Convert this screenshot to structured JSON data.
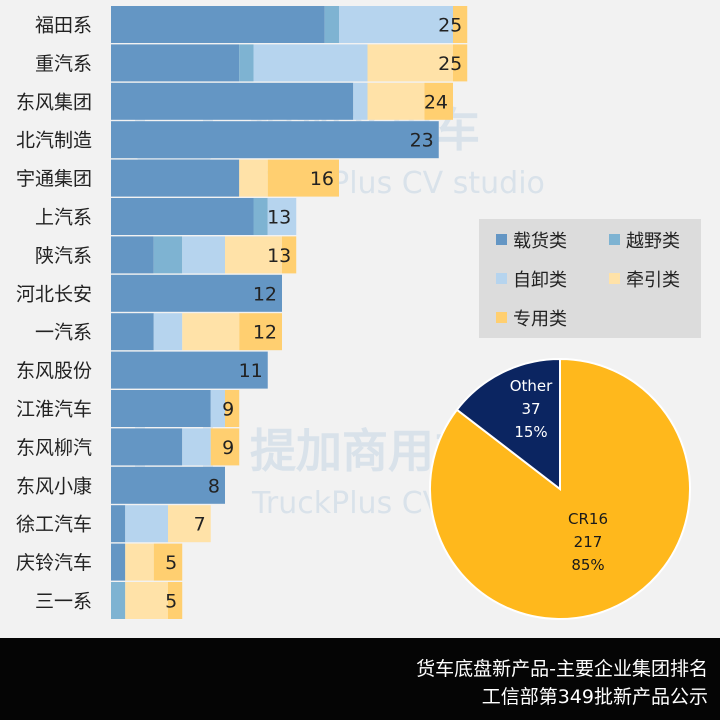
{
  "chart_data": [
    {
      "type": "bar",
      "orientation": "horizontal",
      "stacked": true,
      "categories": [
        "福田系",
        "重汽系",
        "东风集团",
        "北汽制造",
        "宇通集团",
        "上汽系",
        "陕汽系",
        "河北长安",
        "一汽系",
        "东风股份",
        "江淮汽车",
        "东风柳汽",
        "东风小康",
        "徐工汽车",
        "庆铃汽车",
        "三一系"
      ],
      "totals": [
        25,
        25,
        24,
        23,
        16,
        13,
        13,
        12,
        12,
        11,
        9,
        9,
        8,
        7,
        5,
        5
      ],
      "series": [
        {
          "name": "载货类",
          "color": "#6496c4",
          "values": [
            15,
            9,
            17,
            23,
            9,
            10,
            3,
            12,
            3,
            11,
            7,
            5,
            8,
            1,
            1,
            0
          ]
        },
        {
          "name": "越野类",
          "color": "#7eb3d2",
          "values": [
            1,
            1,
            0,
            0,
            0,
            1,
            2,
            0,
            0,
            0,
            0,
            0,
            0,
            0,
            0,
            1
          ]
        },
        {
          "name": "自卸类",
          "color": "#b6d4ee",
          "values": [
            8,
            8,
            1,
            0,
            0,
            2,
            3,
            0,
            2,
            0,
            1,
            2,
            0,
            3,
            0,
            0
          ]
        },
        {
          "name": "牵引类",
          "color": "#ffe2a8",
          "values": [
            0,
            6,
            4,
            0,
            2,
            0,
            4,
            0,
            4,
            0,
            0,
            0,
            0,
            3,
            2,
            3
          ]
        },
        {
          "name": "专用类",
          "color": "#ffcf70",
          "values": [
            1,
            1,
            2,
            0,
            5,
            0,
            1,
            0,
            3,
            0,
            1,
            2,
            0,
            0,
            2,
            1
          ]
        }
      ],
      "legend_position": "right-middle",
      "grid": false
    },
    {
      "type": "pie",
      "slices": [
        {
          "label": "CR16",
          "value": 217,
          "percent": "85%",
          "color": "#ffb81c"
        },
        {
          "label": "Other",
          "value": 37,
          "percent": "15%",
          "color": "#0b2561"
        }
      ]
    }
  ],
  "watermark": {
    "cn": "提加商用车",
    "en": "TruckPlus CV studio"
  },
  "footer": {
    "line1": "货车底盘新产品-主要企业集团排名",
    "line2": "工信部第349批新产品公示"
  }
}
